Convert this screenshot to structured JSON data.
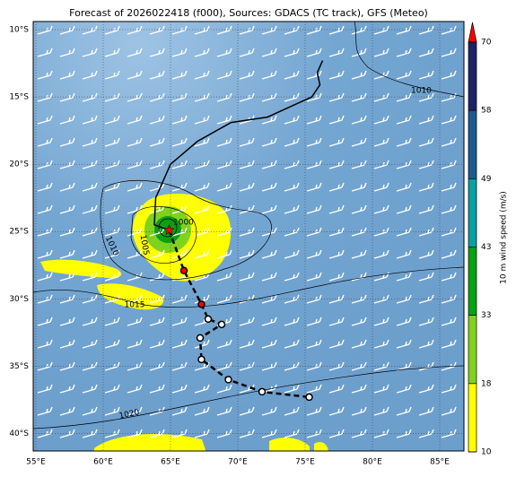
{
  "title": "Forecast of 2026022418 (f000), Sources: GDACS (TC track), GFS (Meteo)",
  "extent": {
    "lon": [
      54.8,
      86.8
    ],
    "lat": [
      -41.3,
      -9.4
    ]
  },
  "lon_ticks": [
    {
      "value": 55,
      "label": "55°E"
    },
    {
      "value": 60,
      "label": "60°E"
    },
    {
      "value": 65,
      "label": "65°E"
    },
    {
      "value": 70,
      "label": "70°E"
    },
    {
      "value": 75,
      "label": "75°E"
    },
    {
      "value": 80,
      "label": "80°E"
    },
    {
      "value": 85,
      "label": "85°E"
    }
  ],
  "lat_ticks": [
    {
      "value": -10,
      "label": "10°S"
    },
    {
      "value": -15,
      "label": "15°S"
    },
    {
      "value": -20,
      "label": "20°S"
    },
    {
      "value": -25,
      "label": "25°S"
    },
    {
      "value": -30,
      "label": "30°S"
    },
    {
      "value": -35,
      "label": "35°S"
    },
    {
      "value": -40,
      "label": "40°S"
    }
  ],
  "colorbar": {
    "label": "10 m wind speed (m/s)",
    "levels": [
      10,
      18,
      33,
      43,
      49,
      58,
      70
    ],
    "colors": [
      "#ffff00",
      "#7fd21e",
      "#0aa014",
      "#0a9fa0",
      "#1f5a8c",
      "#1c2466"
    ],
    "extend_color": "#ff0000"
  },
  "isobars": [
    "1010",
    "1010",
    "1005",
    "1000",
    "1015",
    "1020"
  ],
  "past_track": [
    [
      76.3,
      -12.3
    ],
    [
      75.9,
      -13.2
    ],
    [
      76.1,
      -14.1
    ],
    [
      75.5,
      -15.0
    ],
    [
      72.2,
      -16.5
    ],
    [
      69.5,
      -16.9
    ],
    [
      67.0,
      -18.3
    ],
    [
      65.0,
      -20.0
    ],
    [
      63.9,
      -22.5
    ],
    [
      63.8,
      -24.5
    ],
    [
      64.9,
      -24.9
    ]
  ],
  "forecast_track": [
    [
      64.9,
      -24.9
    ],
    [
      66.0,
      -27.9
    ],
    [
      67.3,
      -30.4
    ],
    [
      67.8,
      -31.5
    ],
    [
      68.8,
      -31.9
    ],
    [
      67.2,
      -32.9
    ],
    [
      67.3,
      -34.5
    ],
    [
      69.3,
      -36.0
    ],
    [
      71.8,
      -36.9
    ],
    [
      75.3,
      -37.3
    ]
  ],
  "forecast_strong": [
    1,
    2
  ]
}
